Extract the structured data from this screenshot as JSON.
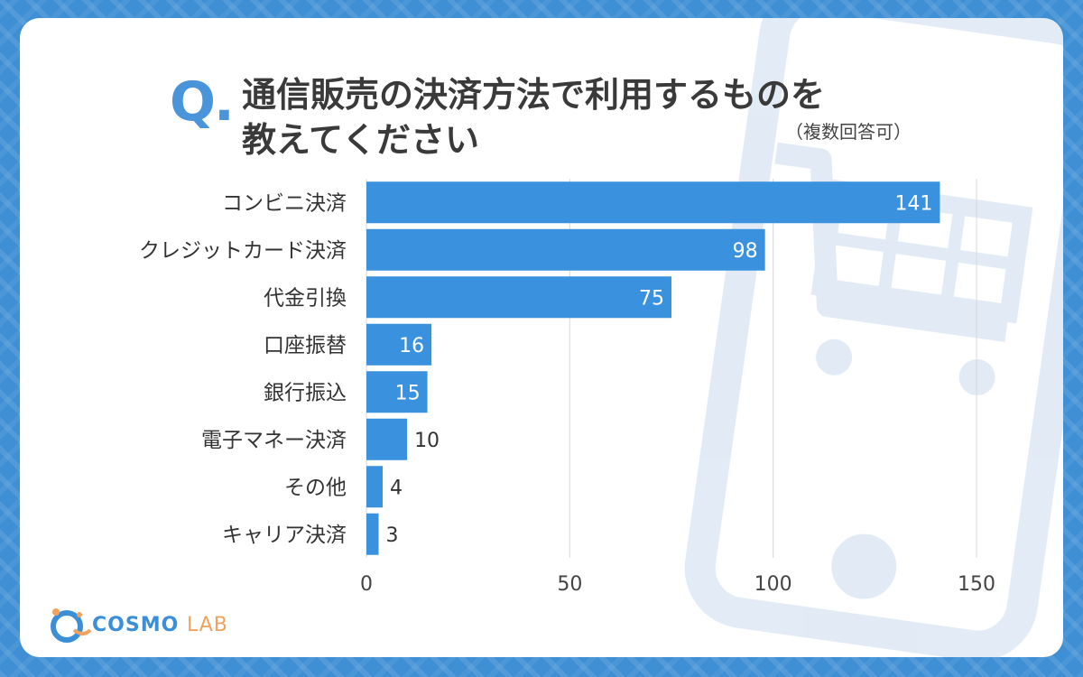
{
  "header": {
    "q_mark": "Q.",
    "title_line1": "通信販売の決済方法で利用するものを",
    "title_line2": "教えてください",
    "note": "（複数回答可）"
  },
  "logo": {
    "brand": "COSMO",
    "suffix": "LAB",
    "icon": "cosmo-lab-logo-icon"
  },
  "colors": {
    "bar": "#3a92de",
    "background": "#3f8fd4",
    "accent": "#4a94d9",
    "logo_orange": "#f0a35e"
  },
  "chart_data": {
    "type": "bar",
    "orientation": "horizontal",
    "title": "通信販売の決済方法で利用するものを教えてください",
    "categories": [
      "コンビニ決済",
      "クレジットカード決済",
      "代金引換",
      "口座振替",
      "銀行振込",
      "電子マネー決済",
      "その他",
      "キャリア決済"
    ],
    "values": [
      141,
      98,
      75,
      16,
      15,
      10,
      4,
      3
    ],
    "xlim": [
      0,
      150
    ],
    "xticks": [
      0,
      50,
      100,
      150
    ],
    "grid": true,
    "xlabel": "",
    "ylabel": ""
  }
}
